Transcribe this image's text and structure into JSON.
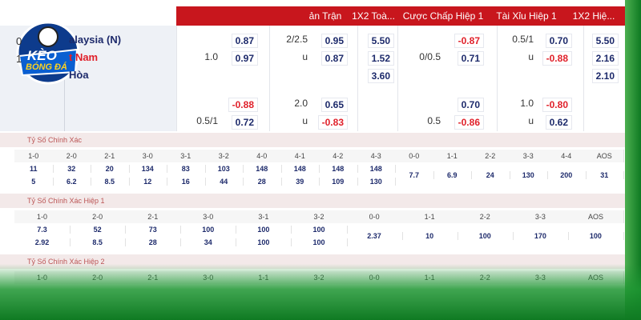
{
  "logo": {
    "line1": "KÈO",
    "line2": "BÓNG ĐÁ"
  },
  "header": {
    "columns": [
      "ản Trận",
      "1X2 Toà...",
      "Cược Chấp Hiệp 1",
      "Tài Xỉu Hiệp 1",
      "1X2 Hiệ..."
    ]
  },
  "teams": {
    "ids": [
      "0",
      "1"
    ],
    "names": [
      "alaysia (N)",
      "t Nam",
      "Hòa"
    ]
  },
  "odds": {
    "rows": [
      [
        null,
        "0.87",
        "2/2.5",
        "0.95",
        "5.50",
        null,
        "-0.87",
        "0.5/1",
        "0.70",
        "5.50"
      ],
      [
        "1.0",
        "0.97",
        "u",
        "0.87",
        "1.52",
        "0/0.5",
        "0.71",
        "u",
        "-0.88",
        "2.16"
      ],
      [
        null,
        null,
        null,
        null,
        "3.60",
        null,
        null,
        null,
        null,
        "2.10"
      ],
      [
        null,
        "-0.88",
        "2.0",
        "0.65",
        null,
        null,
        "0.70",
        "1.0",
        "-0.80",
        null
      ],
      [
        "0.5/1",
        "0.72",
        "u",
        "-0.83",
        null,
        "0.5",
        "-0.86",
        "u",
        "0.62",
        null
      ]
    ]
  },
  "sections": [
    {
      "title": "Tỷ Số Chính Xác",
      "columns": [
        "1-0",
        "2-0",
        "2-1",
        "3-0",
        "3-1",
        "3-2",
        "4-0",
        "4-1",
        "4-2",
        "4-3",
        "0-0",
        "1-1",
        "2-2",
        "3-3",
        "4-4",
        "AOS"
      ],
      "top": [
        "11",
        "32",
        "20",
        "134",
        "83",
        "103",
        "148",
        "148",
        "148",
        "148",
        "7.7",
        "6.9",
        "24",
        "130",
        "200",
        "31"
      ],
      "bottom": [
        "5",
        "6.2",
        "8.5",
        "12",
        "16",
        "44",
        "28",
        "39",
        "109",
        "130",
        null,
        null,
        null,
        null,
        null,
        null
      ]
    },
    {
      "title": "Tỷ Số Chính Xác Hiệp 1",
      "columns": [
        "1-0",
        "2-0",
        "2-1",
        "3-0",
        "3-1",
        "3-2",
        "0-0",
        "1-1",
        "2-2",
        "3-3",
        "AOS"
      ],
      "top": [
        "7.3",
        "52",
        "73",
        "100",
        "100",
        "100",
        "2.37",
        "10",
        "100",
        "170",
        "100"
      ],
      "bottom": [
        "2.92",
        "8.5",
        "28",
        "34",
        "100",
        "100",
        null,
        null,
        null,
        null,
        null
      ]
    },
    {
      "title": "Tỷ Số Chính Xác Hiệp 2",
      "columns": [
        "1-0",
        "2-0",
        "2-1",
        "3-0",
        "1-1",
        "3-2",
        "0-0",
        "1-1",
        "2-2",
        "3-3",
        "AOS"
      ],
      "top": [],
      "bottom": []
    }
  ]
}
